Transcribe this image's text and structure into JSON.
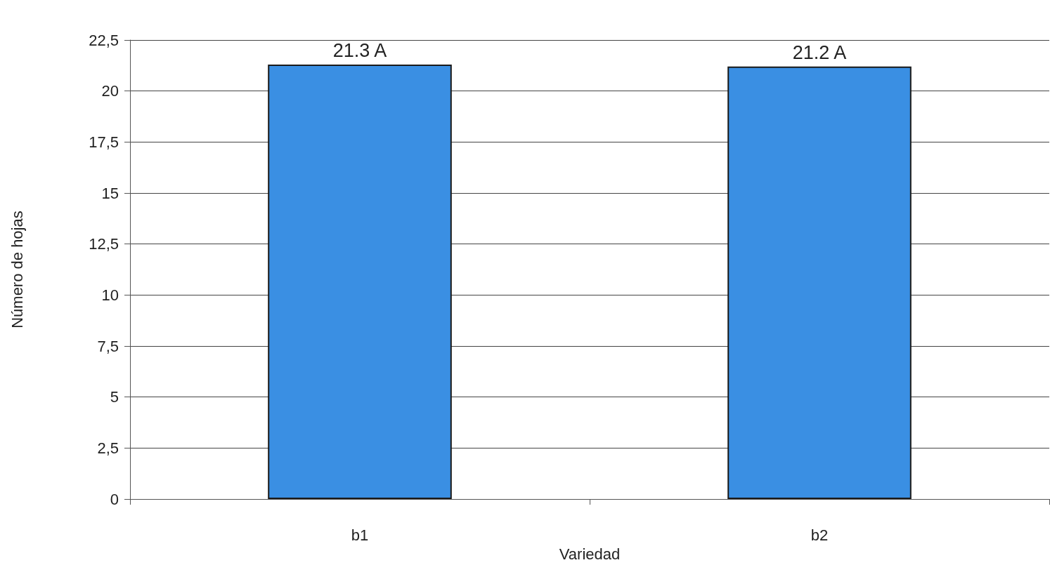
{
  "chart_data": {
    "type": "bar",
    "xlabel": "Variedad",
    "ylabel": "Número de hojas",
    "categories": [
      "b1",
      "b2"
    ],
    "values": [
      21.3,
      21.2
    ],
    "value_labels": [
      "21.3 A",
      "21.2 A"
    ],
    "color": "#3a8fe3",
    "ylim": [
      0,
      22.5
    ],
    "yticks": [
      0,
      {
        "value": 2.5,
        "label": "2,5"
      },
      5,
      {
        "value": 7.5,
        "label": "7,5"
      },
      10,
      {
        "value": 12.5,
        "label": "12,5"
      },
      15,
      {
        "value": 17.5,
        "label": "17,5"
      },
      20,
      {
        "value": 22.5,
        "label": "22,5"
      }
    ],
    "grid": "y"
  }
}
